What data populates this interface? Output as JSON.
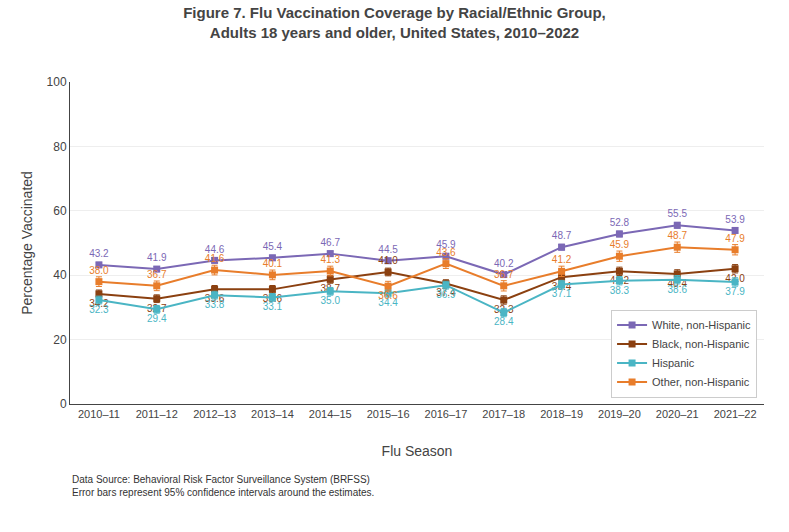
{
  "chart_data": {
    "type": "line",
    "title": "Figure 7. Flu Vaccination Coverage by Racial/Ethnic Group,\nAdults 18 years and older, United States, 2010–2022",
    "x_label": "Flu Season",
    "y_label": "Percentage Vaccinated",
    "categories": [
      "2010–11",
      "2011–12",
      "2012–13",
      "2013–14",
      "2014–15",
      "2015–16",
      "2016–17",
      "2017–18",
      "2018–19",
      "2019–20",
      "2020–21",
      "2021–22"
    ],
    "series": [
      {
        "name": "White, non-Hispanic",
        "color": "#7b68b5",
        "values": [
          43.2,
          41.9,
          44.6,
          45.4,
          46.7,
          44.5,
          45.9,
          40.2,
          48.7,
          52.8,
          55.5,
          53.9
        ],
        "value_labels": [
          "43.2",
          "41.9",
          "44.6",
          "45.4",
          "46.7",
          "44.5",
          "45.9",
          "40.2",
          "48.7",
          "52.8",
          "55.5",
          "53.9"
        ],
        "errors": [
          0.8,
          0.8,
          0.8,
          0.8,
          0.8,
          0.8,
          0.8,
          0.8,
          0.9,
          0.9,
          0.9,
          0.9
        ]
      },
      {
        "name": "Black, non-Hispanic",
        "color": "#8b4010",
        "values": [
          34.2,
          32.7,
          35.6,
          35.6,
          38.7,
          41.0,
          37.4,
          32.3,
          39.4,
          41.2,
          40.4,
          42.0
        ],
        "value_labels": [
          "34.2",
          "32.7",
          "35.6",
          "35.6",
          "38.7",
          "41.0",
          "37.4",
          "32.3",
          "39.4",
          "41.2",
          "40.4",
          "42.0"
        ],
        "errors": [
          1.2,
          1.2,
          1.2,
          1.2,
          1.2,
          1.2,
          1.2,
          1.3,
          1.3,
          1.3,
          1.3,
          1.3
        ]
      },
      {
        "name": "Hispanic",
        "color": "#4ab5c4",
        "values": [
          32.3,
          29.4,
          33.8,
          33.1,
          35.0,
          34.4,
          36.9,
          28.4,
          37.1,
          38.3,
          38.6,
          37.9
        ],
        "value_labels": [
          "32.3",
          "29.4",
          "33.8",
          "33.1",
          "35.0",
          "34.4",
          "36.9",
          "28.4",
          "37.1",
          "38.3",
          "38.6",
          "37.9"
        ],
        "errors": [
          1.2,
          1.2,
          1.2,
          1.2,
          1.2,
          1.2,
          1.2,
          1.3,
          1.3,
          1.3,
          1.3,
          1.3
        ]
      },
      {
        "name": "Other, non-Hispanic",
        "color": "#e87d2b",
        "values": [
          38.0,
          36.7,
          41.6,
          40.1,
          41.3,
          36.6,
          43.6,
          36.7,
          41.2,
          45.9,
          48.7,
          47.9
        ],
        "value_labels": [
          "38.0",
          "36.7",
          "41.6",
          "40.1",
          "41.3",
          "36.6",
          "43.6",
          "36.7",
          "41.2",
          "45.9",
          "48.7",
          "47.9"
        ],
        "errors": [
          1.5,
          1.5,
          1.5,
          1.5,
          1.5,
          1.5,
          1.5,
          1.6,
          1.6,
          1.6,
          1.6,
          1.6
        ]
      }
    ],
    "ylim": [
      0,
      100
    ],
    "yticks": [
      0,
      20,
      40,
      60,
      80,
      100
    ],
    "grid": true,
    "legend": "lower right",
    "data_labels": true,
    "marker": "square",
    "annotations": [
      "Data Source: Behavioral Risk Factor Surveillance System (BRFSS)",
      "Error bars represent 95% confidence intervals around the estimates."
    ]
  }
}
